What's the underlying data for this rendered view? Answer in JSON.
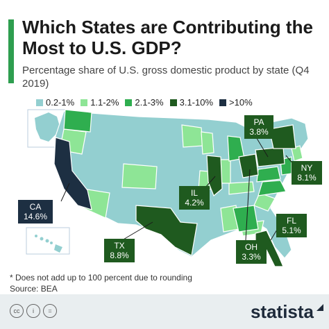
{
  "title": "Which States are Contributing the Most to U.S. GDP?",
  "subtitle": "Percentage share of U.S. gross domestic product by state (Q4 2019)",
  "legend": [
    {
      "label": "0.2-1%",
      "color": "#93cfd0"
    },
    {
      "label": "1.1-2%",
      "color": "#8ee596"
    },
    {
      "label": "2.1-3%",
      "color": "#2fae4f"
    },
    {
      "label": "3.1-10%",
      "color": "#1f5a1f"
    },
    {
      "label": ">10%",
      "color": "#1d2f42"
    }
  ],
  "callouts": [
    {
      "state": "PA",
      "value": "3.8%"
    },
    {
      "state": "NY",
      "value": "8.1%"
    },
    {
      "state": "IL",
      "value": "4.2%"
    },
    {
      "state": "FL",
      "value": "5.1%"
    },
    {
      "state": "CA",
      "value": "14.6%"
    },
    {
      "state": "TX",
      "value": "8.8%"
    },
    {
      "state": "OH",
      "value": "3.3%"
    }
  ],
  "footnote": "* Does not add up to 100 percent due to rounding",
  "source": "Source: BEA",
  "footer": {
    "brand": "statista",
    "cc_icons": [
      "cc",
      "i",
      "="
    ]
  }
}
